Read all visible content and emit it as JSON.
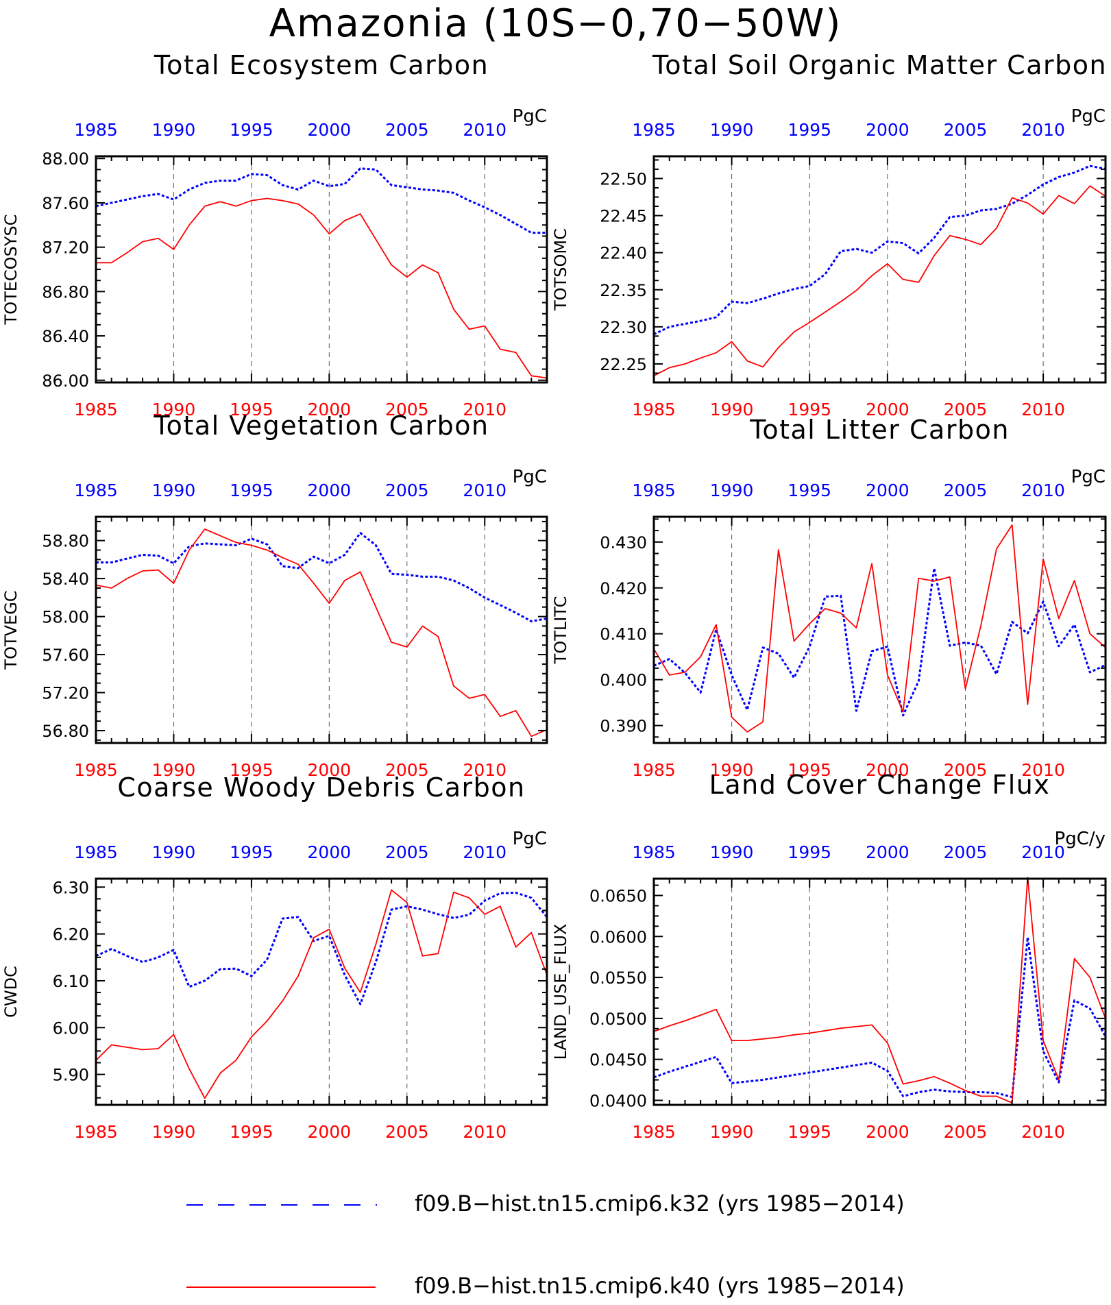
{
  "title": "Amazonia (10S−0,70−50W)",
  "colors": {
    "k32": "#0000ff",
    "k40": "#ff0000",
    "axis": "#000000",
    "grid": "#555555"
  },
  "legend": [
    {
      "label": "f09.B−hist.tn15.cmip6.k32 (yrs 1985−2014)",
      "color": "#0000ff",
      "style": "dashed"
    },
    {
      "label": "f09.B−hist.tn15.cmip6.k40 (yrs 1985−2014)",
      "color": "#ff0000",
      "style": "solid"
    }
  ],
  "chart_data": [
    {
      "type": "line",
      "title": "Total Ecosystem Carbon",
      "ylabel": "TOTECOSYSC",
      "units": "PgC",
      "xlim": [
        1985,
        2014
      ],
      "ylim": [
        85.98,
        88.02
      ],
      "yticks": [
        86.0,
        86.4,
        86.8,
        87.2,
        87.6,
        88.0
      ],
      "ytick_labels": [
        "86.00",
        "86.40",
        "86.80",
        "87.20",
        "87.60",
        "88.00"
      ],
      "xticks": [
        1985,
        1990,
        1995,
        2000,
        2005,
        2010
      ],
      "xtick_labels": [
        "1985",
        "1990",
        "1995",
        "2000",
        "2005",
        "2010"
      ],
      "grid": "vertical dashed at 1990, 1995, 2000, 2005, 2010",
      "x": [
        1985,
        1986,
        1987,
        1988,
        1989,
        1990,
        1991,
        1992,
        1993,
        1994,
        1995,
        1996,
        1997,
        1998,
        1999,
        2000,
        2001,
        2002,
        2003,
        2004,
        2005,
        2006,
        2007,
        2008,
        2009,
        2010,
        2011,
        2012,
        2013,
        2014
      ],
      "series": [
        {
          "name": "f09.B−hist.tn15.cmip6.k32",
          "color": "#0000ff",
          "style": "dashed",
          "values": [
            87.57,
            87.6,
            87.63,
            87.66,
            87.68,
            87.63,
            87.72,
            87.78,
            87.8,
            87.8,
            87.86,
            87.85,
            87.76,
            87.72,
            87.8,
            87.75,
            87.77,
            87.91,
            87.9,
            87.76,
            87.74,
            87.72,
            87.71,
            87.69,
            87.62,
            87.56,
            87.49,
            87.41,
            87.33,
            87.33
          ]
        },
        {
          "name": "f09.B−hist.tn15.cmip6.k40",
          "color": "#ff0000",
          "style": "solid",
          "values": [
            87.06,
            87.06,
            87.15,
            87.25,
            87.28,
            87.18,
            87.4,
            87.57,
            87.61,
            87.57,
            87.62,
            87.64,
            87.62,
            87.59,
            87.49,
            87.32,
            87.44,
            87.5,
            87.27,
            87.04,
            86.93,
            87.04,
            86.97,
            86.64,
            86.46,
            86.49,
            86.28,
            86.25,
            86.04,
            86.02
          ]
        }
      ]
    },
    {
      "type": "line",
      "title": "Total Soil Organic Matter Carbon",
      "ylabel": "TOTSOMC",
      "units": "PgC",
      "xlim": [
        1985,
        2014
      ],
      "ylim": [
        22.225,
        22.53
      ],
      "yticks": [
        22.25,
        22.3,
        22.35,
        22.4,
        22.45,
        22.5
      ],
      "ytick_labels": [
        "22.25",
        "22.30",
        "22.35",
        "22.40",
        "22.45",
        "22.50"
      ],
      "xticks": [
        1985,
        1990,
        1995,
        2000,
        2005,
        2010
      ],
      "xtick_labels": [
        "1985",
        "1990",
        "1995",
        "2000",
        "2005",
        "2010"
      ],
      "grid": "vertical dashed at 1990, 1995, 2000, 2005, 2010",
      "x": [
        1985,
        1986,
        1987,
        1988,
        1989,
        1990,
        1991,
        1992,
        1993,
        1994,
        1995,
        1996,
        1997,
        1998,
        1999,
        2000,
        2001,
        2002,
        2003,
        2004,
        2005,
        2006,
        2007,
        2008,
        2009,
        2010,
        2011,
        2012,
        2013,
        2014
      ],
      "series": [
        {
          "name": "f09.B−hist.tn15.cmip6.k32",
          "color": "#0000ff",
          "style": "dashed",
          "values": [
            22.29,
            22.3,
            22.304,
            22.308,
            22.313,
            22.334,
            22.332,
            22.338,
            22.345,
            22.351,
            22.355,
            22.371,
            22.402,
            22.405,
            22.4,
            22.415,
            22.413,
            22.399,
            22.42,
            22.448,
            22.45,
            22.457,
            22.459,
            22.466,
            22.478,
            22.492,
            22.502,
            22.508,
            22.517,
            22.513
          ]
        },
        {
          "name": "f09.B−hist.tn15.cmip6.k40",
          "color": "#ff0000",
          "style": "solid",
          "values": [
            22.234,
            22.245,
            22.25,
            22.258,
            22.265,
            22.28,
            22.254,
            22.246,
            22.272,
            22.293,
            22.306,
            22.32,
            22.334,
            22.349,
            22.369,
            22.385,
            22.364,
            22.36,
            22.396,
            22.423,
            22.418,
            22.411,
            22.433,
            22.474,
            22.467,
            22.452,
            22.477,
            22.466,
            22.49,
            22.476
          ]
        }
      ]
    },
    {
      "type": "line",
      "title": "Total Vegetation Carbon",
      "ylabel": "TOTVEGC",
      "units": "PgC",
      "xlim": [
        1985,
        2014
      ],
      "ylim": [
        56.67,
        59.05
      ],
      "yticks": [
        56.8,
        57.2,
        57.6,
        58.0,
        58.4,
        58.8
      ],
      "ytick_labels": [
        "56.80",
        "57.20",
        "57.60",
        "58.00",
        "58.40",
        "58.80"
      ],
      "xticks": [
        1985,
        1990,
        1995,
        2000,
        2005,
        2010
      ],
      "xtick_labels": [
        "1985",
        "1990",
        "1995",
        "2000",
        "2005",
        "2010"
      ],
      "grid": "vertical dashed at 1990, 1995, 2000, 2005, 2010",
      "x": [
        1985,
        1986,
        1987,
        1988,
        1989,
        1990,
        1991,
        1992,
        1993,
        1994,
        1995,
        1996,
        1997,
        1998,
        1999,
        2000,
        2001,
        2002,
        2003,
        2004,
        2005,
        2006,
        2007,
        2008,
        2009,
        2010,
        2011,
        2012,
        2013,
        2014
      ],
      "series": [
        {
          "name": "f09.B−hist.tn15.cmip6.k32",
          "color": "#0000ff",
          "style": "dashed",
          "values": [
            58.57,
            58.57,
            58.61,
            58.65,
            58.64,
            58.56,
            58.74,
            58.77,
            58.76,
            58.75,
            58.82,
            58.76,
            58.53,
            58.51,
            58.63,
            58.56,
            58.65,
            58.88,
            58.75,
            58.45,
            58.44,
            58.42,
            58.42,
            58.38,
            58.3,
            58.2,
            58.12,
            58.04,
            57.95,
            57.98
          ]
        },
        {
          "name": "f09.B−hist.tn15.cmip6.k40",
          "color": "#ff0000",
          "style": "solid",
          "values": [
            58.33,
            58.3,
            58.4,
            58.48,
            58.49,
            58.35,
            58.7,
            58.92,
            58.85,
            58.78,
            58.75,
            58.7,
            58.62,
            58.55,
            58.35,
            58.14,
            58.38,
            58.47,
            58.1,
            57.73,
            57.68,
            57.9,
            57.79,
            57.27,
            57.14,
            57.18,
            56.95,
            57.01,
            56.74,
            56.81
          ]
        }
      ]
    },
    {
      "type": "line",
      "title": "Total Litter Carbon",
      "ylabel": "TOTLITC",
      "units": "PgC",
      "xlim": [
        1985,
        2014
      ],
      "ylim": [
        0.3862,
        0.4355
      ],
      "yticks": [
        0.39,
        0.4,
        0.41,
        0.42,
        0.43
      ],
      "ytick_labels": [
        "0.390",
        "0.400",
        "0.410",
        "0.420",
        "0.430"
      ],
      "xticks": [
        1985,
        1990,
        1995,
        2000,
        2005,
        2010
      ],
      "xtick_labels": [
        "1985",
        "1990",
        "1995",
        "2000",
        "2005",
        "2010"
      ],
      "grid": "vertical dashed at 1990, 1995, 2000, 2005, 2010",
      "x": [
        1985,
        1986,
        1987,
        1988,
        1989,
        1990,
        1991,
        1992,
        1993,
        1994,
        1995,
        1996,
        1997,
        1998,
        1999,
        2000,
        2001,
        2002,
        2003,
        2004,
        2005,
        2006,
        2007,
        2008,
        2009,
        2010,
        2011,
        2012,
        2013,
        2014
      ],
      "series": [
        {
          "name": "f09.B−hist.tn15.cmip6.k32",
          "color": "#0000ff",
          "style": "dashed",
          "values": [
            0.403,
            0.4045,
            0.4015,
            0.3972,
            0.411,
            0.401,
            0.3934,
            0.407,
            0.4057,
            0.4004,
            0.4072,
            0.4181,
            0.4183,
            0.3932,
            0.4062,
            0.4072,
            0.3922,
            0.3997,
            0.4243,
            0.4074,
            0.4081,
            0.4074,
            0.4012,
            0.4126,
            0.4101,
            0.417,
            0.4073,
            0.412,
            0.4016,
            0.4032
          ]
        },
        {
          "name": "f09.B−hist.tn15.cmip6.k40",
          "color": "#ff0000",
          "style": "solid",
          "values": [
            0.4067,
            0.401,
            0.4016,
            0.405,
            0.412,
            0.3918,
            0.3886,
            0.3908,
            0.4283,
            0.4084,
            0.4122,
            0.4155,
            0.4145,
            0.4113,
            0.4253,
            0.401,
            0.393,
            0.4221,
            0.4215,
            0.4224,
            0.398,
            0.4118,
            0.4285,
            0.4337,
            0.3946,
            0.4263,
            0.4133,
            0.4216,
            0.41,
            0.407
          ]
        }
      ]
    },
    {
      "type": "line",
      "title": "Coarse Woody Debris Carbon",
      "ylabel": "CWDC",
      "units": "PgC",
      "xlim": [
        1985,
        2014
      ],
      "ylim": [
        5.835,
        6.318
      ],
      "yticks": [
        5.9,
        6.0,
        6.1,
        6.2,
        6.3
      ],
      "ytick_labels": [
        "5.90",
        "6.00",
        "6.10",
        "6.20",
        "6.30"
      ],
      "xticks": [
        1985,
        1990,
        1995,
        2000,
        2005,
        2010
      ],
      "xtick_labels": [
        "1985",
        "1990",
        "1995",
        "2000",
        "2005",
        "2010"
      ],
      "grid": "vertical dashed at 1990, 1995, 2000, 2005, 2010",
      "x": [
        1985,
        1986,
        1987,
        1988,
        1989,
        1990,
        1991,
        1992,
        1993,
        1994,
        1995,
        1996,
        1997,
        1998,
        1999,
        2000,
        2001,
        2002,
        2003,
        2004,
        2005,
        2006,
        2007,
        2008,
        2009,
        2010,
        2011,
        2012,
        2013,
        2014
      ],
      "series": [
        {
          "name": "f09.B−hist.tn15.cmip6.k32",
          "color": "#0000ff",
          "style": "dashed",
          "values": [
            6.153,
            6.168,
            6.153,
            6.14,
            6.15,
            6.166,
            6.087,
            6.1,
            6.125,
            6.126,
            6.11,
            6.145,
            6.233,
            6.236,
            6.185,
            6.196,
            6.112,
            6.05,
            6.14,
            6.252,
            6.259,
            6.252,
            6.242,
            6.234,
            6.241,
            6.271,
            6.287,
            6.288,
            6.277,
            6.236
          ]
        },
        {
          "name": "f09.B−hist.tn15.cmip6.k40",
          "color": "#ff0000",
          "style": "solid",
          "values": [
            5.93,
            5.963,
            5.958,
            5.953,
            5.955,
            5.985,
            5.912,
            5.849,
            5.903,
            5.93,
            5.98,
            6.014,
            6.057,
            6.11,
            6.192,
            6.21,
            6.127,
            6.075,
            6.178,
            6.294,
            6.267,
            6.153,
            6.158,
            6.289,
            6.277,
            6.242,
            6.259,
            6.172,
            6.203,
            6.112
          ]
        }
      ]
    },
    {
      "type": "line",
      "title": "Land Cover Change Flux",
      "ylabel": "LAND_USE_FLUX",
      "units": "PgC/y",
      "xlim": [
        1985,
        2014
      ],
      "ylim": [
        0.03945,
        0.06705
      ],
      "yticks": [
        0.04,
        0.045,
        0.05,
        0.055,
        0.06,
        0.065
      ],
      "ytick_labels": [
        "0.0400",
        "0.0450",
        "0.0500",
        "0.0550",
        "0.0600",
        "0.0650"
      ],
      "xticks": [
        1985,
        1990,
        1995,
        2000,
        2005,
        2010
      ],
      "xtick_labels": [
        "1985",
        "1990",
        "1995",
        "2000",
        "2005",
        "2010"
      ],
      "grid": "vertical dashed at 1990, 1995, 2000, 2005, 2010",
      "x": [
        1985,
        1986,
        1987,
        1988,
        1989,
        1990,
        1991,
        1992,
        1993,
        1994,
        1995,
        1996,
        1997,
        1998,
        1999,
        2000,
        2001,
        2002,
        2003,
        2004,
        2005,
        2006,
        2007,
        2008,
        2009,
        2010,
        2011,
        2012,
        2013,
        2014
      ],
      "series": [
        {
          "name": "f09.B−hist.tn15.cmip6.k32",
          "color": "#0000ff",
          "style": "dashed",
          "values": [
            0.0428,
            0.0435,
            0.0441,
            0.0447,
            0.0453,
            0.0421,
            0.0423,
            0.0425,
            0.0428,
            0.0431,
            0.0434,
            0.0437,
            0.044,
            0.0443,
            0.0446,
            0.0436,
            0.0405,
            0.041,
            0.0413,
            0.0411,
            0.041,
            0.041,
            0.0409,
            0.0404,
            0.0599,
            0.046,
            0.0422,
            0.0522,
            0.0512,
            0.0478
          ]
        },
        {
          "name": "f09.B−hist.tn15.cmip6.k40",
          "color": "#ff0000",
          "style": "solid",
          "values": [
            0.0484,
            0.0491,
            0.0497,
            0.0504,
            0.0511,
            0.0473,
            0.0473,
            0.0475,
            0.0477,
            0.048,
            0.0482,
            0.0485,
            0.0488,
            0.049,
            0.0492,
            0.047,
            0.042,
            0.0424,
            0.0429,
            0.0421,
            0.0412,
            0.0405,
            0.0405,
            0.0397,
            0.0672,
            0.0473,
            0.0425,
            0.0573,
            0.055,
            0.05
          ]
        }
      ]
    }
  ]
}
